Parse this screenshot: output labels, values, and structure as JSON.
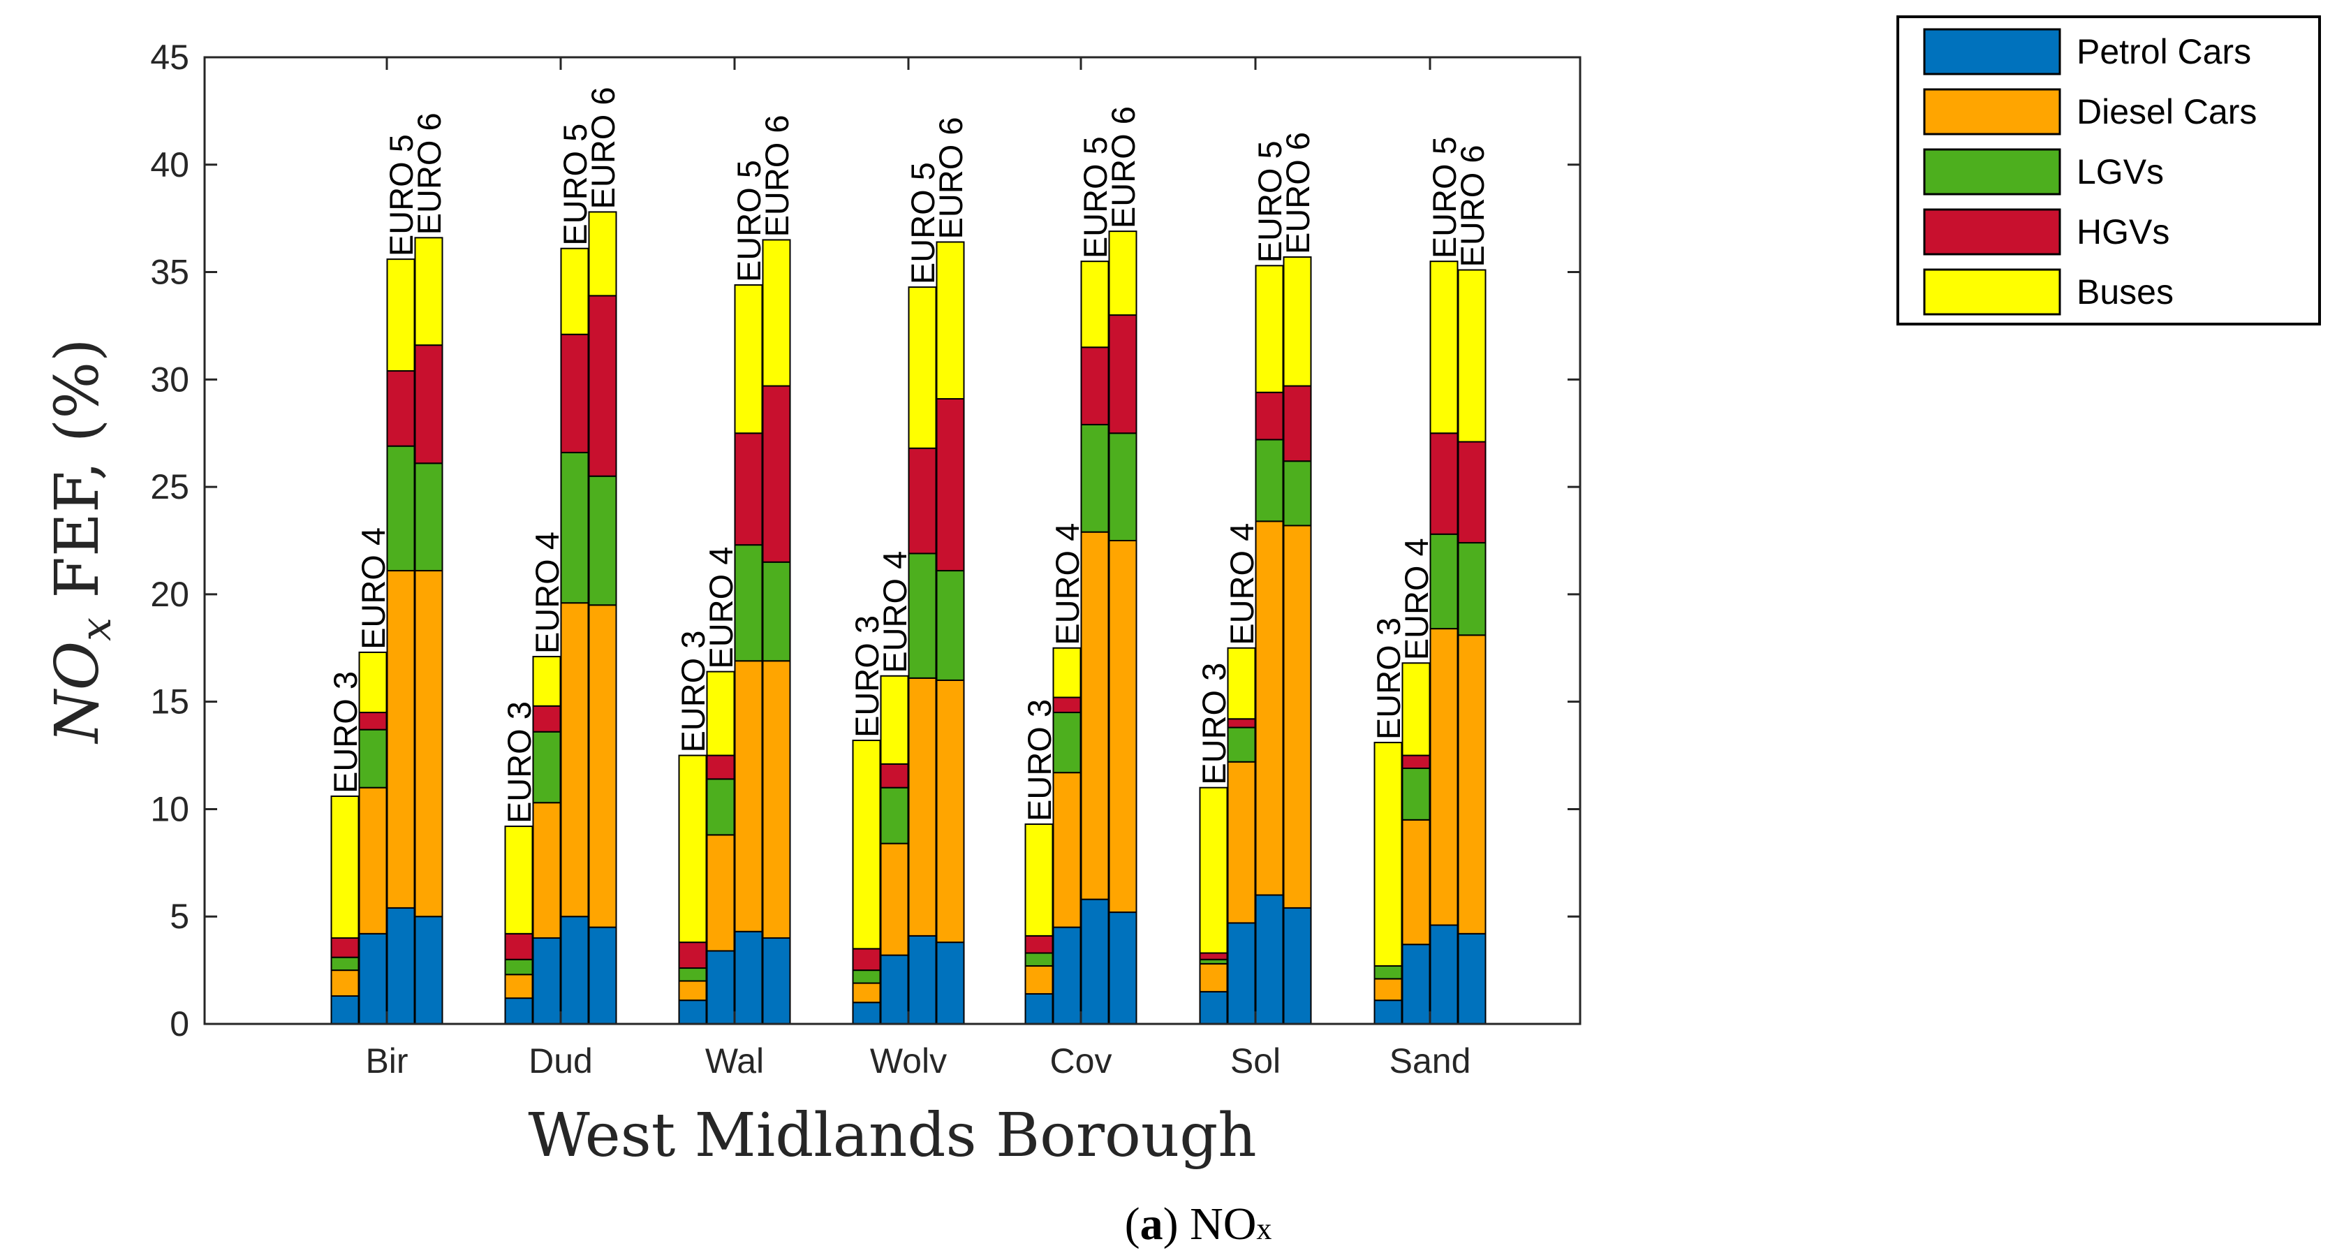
{
  "chart_data": {
    "type": "bar",
    "stacked": true,
    "y_title_parts": {
      "base": "NO",
      "sub": "x",
      "rest": " FEF, (%)"
    },
    "xlabel": "West Midlands Borough",
    "ylim": [
      0,
      45
    ],
    "yticks": [
      0,
      5,
      10,
      15,
      20,
      25,
      30,
      35,
      40,
      45
    ],
    "categories": [
      "Bir",
      "Dud",
      "Wal",
      "Wolv",
      "Cov",
      "Sol",
      "Sand"
    ],
    "euro_standards": [
      "EURO 3",
      "EURO 4",
      "EURO 5",
      "EURO 6"
    ],
    "grid": false,
    "legend_position": "outside-top-right",
    "series": [
      {
        "name": "Petrol Cars",
        "color": "#0072BD",
        "values": [
          [
            1.3,
            4.2,
            5.4,
            5.0
          ],
          [
            1.2,
            4.0,
            5.0,
            4.5
          ],
          [
            1.1,
            3.4,
            4.3,
            4.0
          ],
          [
            1.0,
            3.2,
            4.1,
            3.8
          ],
          [
            1.4,
            4.5,
            5.8,
            5.2
          ],
          [
            1.5,
            4.7,
            6.0,
            5.4
          ],
          [
            1.1,
            3.7,
            4.6,
            4.2
          ]
        ]
      },
      {
        "name": "Diesel Cars",
        "color": "#FFA500",
        "values": [
          [
            1.2,
            6.8,
            15.7,
            16.1
          ],
          [
            1.1,
            6.3,
            14.6,
            15.0
          ],
          [
            0.9,
            5.4,
            12.6,
            12.9
          ],
          [
            0.9,
            5.2,
            12.0,
            12.2
          ],
          [
            1.3,
            7.2,
            17.1,
            17.3
          ],
          [
            1.3,
            7.5,
            17.4,
            17.8
          ],
          [
            1.0,
            5.8,
            13.8,
            13.9
          ]
        ]
      },
      {
        "name": "LGVs",
        "color": "#4DAF1E",
        "values": [
          [
            0.6,
            2.7,
            5.8,
            5.0
          ],
          [
            0.7,
            3.3,
            7.0,
            6.0
          ],
          [
            0.6,
            2.6,
            5.4,
            4.6
          ],
          [
            0.6,
            2.6,
            5.8,
            5.1
          ],
          [
            0.6,
            2.8,
            5.0,
            5.0
          ],
          [
            0.2,
            1.6,
            3.8,
            3.0
          ],
          [
            0.6,
            2.4,
            4.4,
            4.3
          ]
        ]
      },
      {
        "name": "HGVs",
        "color": "#C8102E",
        "values": [
          [
            0.9,
            0.8,
            3.5,
            5.5
          ],
          [
            1.2,
            1.2,
            5.5,
            8.4
          ],
          [
            1.2,
            1.1,
            5.2,
            8.2
          ],
          [
            1.0,
            1.1,
            4.9,
            8.0
          ],
          [
            0.8,
            0.7,
            3.6,
            5.5
          ],
          [
            0.3,
            0.4,
            2.2,
            3.5
          ],
          [
            0.0,
            0.6,
            4.7,
            4.7
          ]
        ]
      },
      {
        "name": "Buses",
        "color": "#FFFF00",
        "values": [
          [
            6.6,
            2.8,
            5.2,
            5.0
          ],
          [
            5.0,
            2.3,
            4.0,
            3.9
          ],
          [
            8.7,
            3.9,
            6.9,
            6.8
          ],
          [
            9.7,
            4.1,
            7.5,
            7.3
          ],
          [
            5.2,
            2.3,
            4.0,
            3.9
          ],
          [
            7.7,
            3.3,
            5.9,
            6.0
          ],
          [
            10.4,
            4.3,
            8.0,
            8.0
          ]
        ]
      }
    ]
  },
  "caption": {
    "label": "(a)",
    "label_letter": "a",
    "text_base": "NO",
    "text_sub": "x"
  }
}
